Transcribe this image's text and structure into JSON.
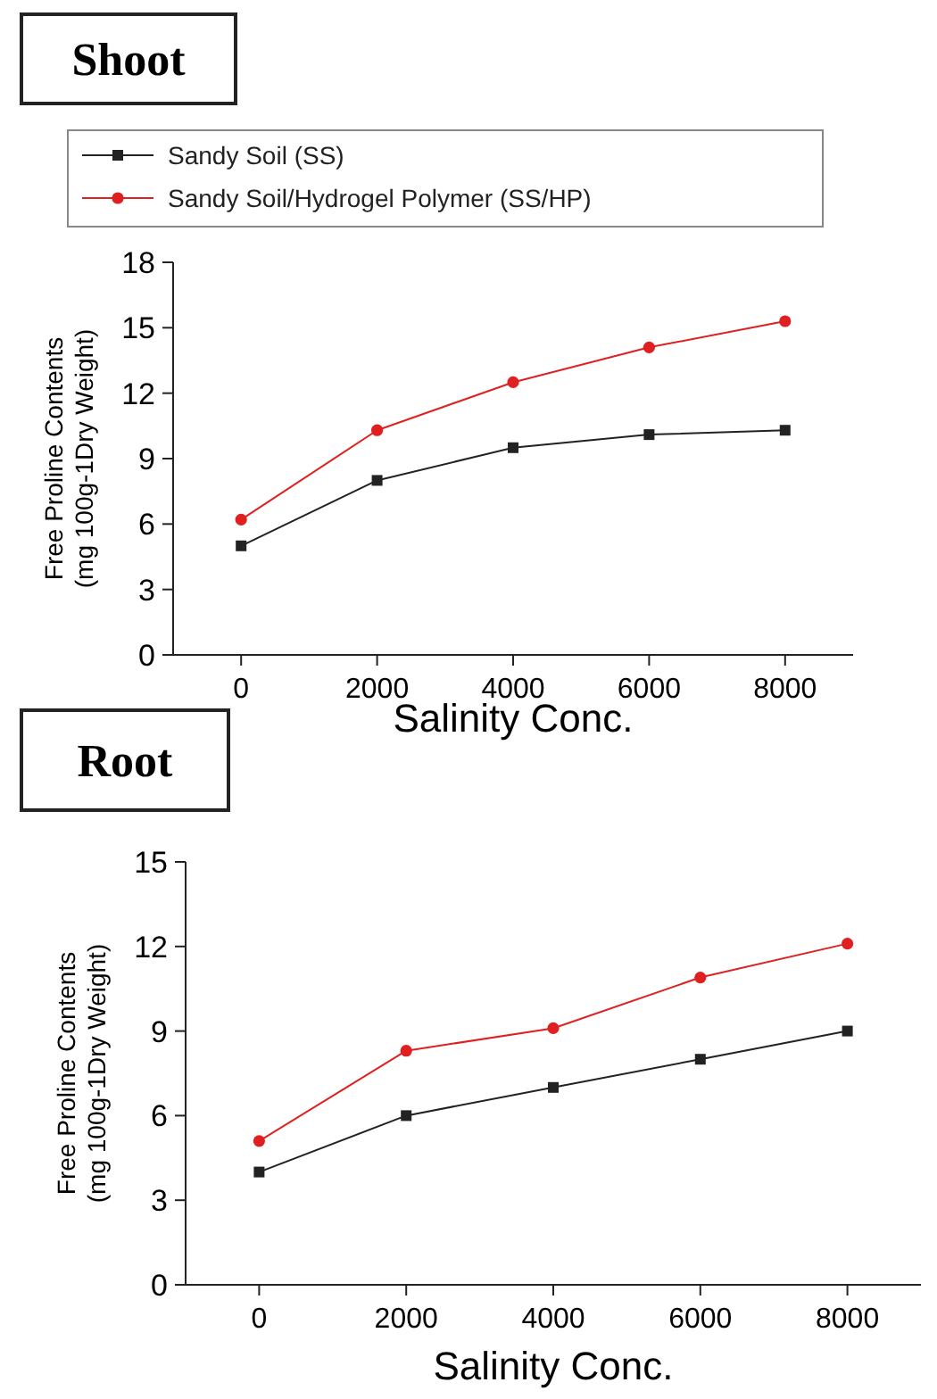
{
  "chart_data": [
    {
      "type": "line",
      "title": "Shoot",
      "xlabel": "Salinity Conc.",
      "ylabel": "Free Proline Contents\n(mg 100g-1Dry Weight)",
      "x": [
        0,
        2000,
        4000,
        6000,
        8000
      ],
      "xlim": [
        -1000,
        9000
      ],
      "xticks": [
        0,
        2000,
        4000,
        6000,
        8000
      ],
      "ylim": [
        0,
        18
      ],
      "yticks": [
        0,
        3,
        6,
        9,
        12,
        15,
        18
      ],
      "legend": "top",
      "grid": false,
      "series": [
        {
          "name": "Sandy Soil (SS)",
          "color": "#222222",
          "marker": "square",
          "values": [
            5,
            8,
            9.5,
            10.1,
            10.3
          ]
        },
        {
          "name": "Sandy Soil/Hydrogel Polymer (SS/HP)",
          "color": "#e02020",
          "marker": "circle",
          "values": [
            6.2,
            10.3,
            12.5,
            14.1,
            15.3
          ]
        }
      ]
    },
    {
      "type": "line",
      "title": "Root",
      "xlabel": "Salinity Conc.",
      "ylabel": "Free Proline Contents\n(mg 100g-1Dry Weight)",
      "x": [
        0,
        2000,
        4000,
        6000,
        8000
      ],
      "xlim": [
        -1000,
        9000
      ],
      "xticks": [
        0,
        2000,
        4000,
        6000,
        8000
      ],
      "ylim": [
        0,
        15
      ],
      "yticks": [
        0,
        3,
        6,
        9,
        12,
        15
      ],
      "grid": false,
      "series": [
        {
          "color": "#222222",
          "marker": "square",
          "values": [
            4,
            6,
            7,
            8,
            9
          ]
        },
        {
          "color": "#e02020",
          "marker": "circle",
          "values": [
            5.1,
            8.3,
            9.1,
            10.9,
            12.1
          ]
        }
      ]
    }
  ]
}
